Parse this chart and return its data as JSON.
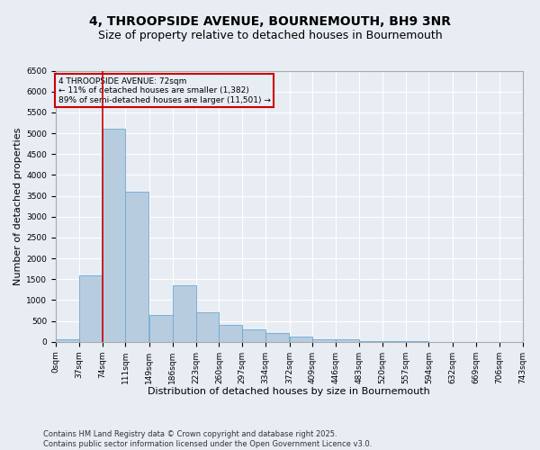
{
  "title": "4, THROOPSIDE AVENUE, BOURNEMOUTH, BH9 3NR",
  "subtitle": "Size of property relative to detached houses in Bournemouth",
  "xlabel": "Distribution of detached houses by size in Bournemouth",
  "ylabel": "Number of detached properties",
  "footnote1": "Contains HM Land Registry data © Crown copyright and database right 2025.",
  "footnote2": "Contains public sector information licensed under the Open Government Licence v3.0.",
  "bin_edges": [
    0,
    37,
    74,
    111,
    149,
    186,
    223,
    260,
    297,
    334,
    372,
    409,
    446,
    483,
    520,
    557,
    594,
    632,
    669,
    706,
    743
  ],
  "bar_heights": [
    50,
    1600,
    5100,
    3600,
    650,
    1350,
    700,
    400,
    300,
    200,
    130,
    50,
    50,
    10,
    10,
    10,
    0,
    0,
    0,
    0
  ],
  "bar_color": "#b8ccdf",
  "bar_edge_color": "#6aaad4",
  "background_color": "#e8edf4",
  "grid_color": "#ffffff",
  "vline_x": 74,
  "vline_color": "#cc0000",
  "ylim_max": 6500,
  "annotation_text": "4 THROOPSIDE AVENUE: 72sqm\n← 11% of detached houses are smaller (1,382)\n89% of semi-detached houses are larger (11,501) →",
  "annotation_box_color": "#cc0000",
  "title_fontsize": 10,
  "subtitle_fontsize": 9,
  "tick_label_fontsize": 6.5,
  "axis_label_fontsize": 8,
  "footnote_fontsize": 6,
  "yticks": [
    0,
    500,
    1000,
    1500,
    2000,
    2500,
    3000,
    3500,
    4000,
    4500,
    5000,
    5500,
    6000,
    6500
  ]
}
